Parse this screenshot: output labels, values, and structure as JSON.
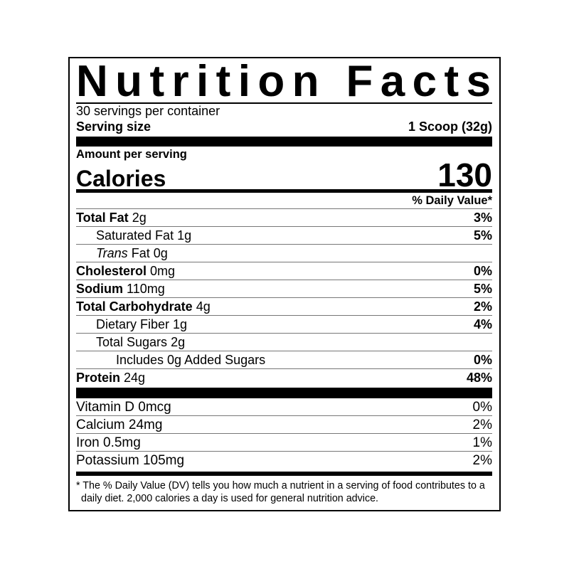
{
  "title": "Nutrition Facts",
  "servings_per_container": "30 servings per container",
  "serving_size": {
    "label": "Serving size",
    "value": "1 Scoop (32g)"
  },
  "amount_per_serving": "Amount per serving",
  "calories": {
    "label": "Calories",
    "value": "130"
  },
  "daily_value_header": "% Daily Value*",
  "nutrients": [
    {
      "name": "Total Fat",
      "amount": "2g",
      "dv": "3%"
    },
    {
      "name": "Saturated Fat",
      "amount": "1g",
      "dv": "5%"
    },
    {
      "name_italic": "Trans",
      "name": "Fat",
      "amount": "0g",
      "dv": ""
    },
    {
      "name": "Cholesterol",
      "amount": "0mg",
      "dv": "0%"
    },
    {
      "name": "Sodium",
      "amount": "110mg",
      "dv": "5%"
    },
    {
      "name": "Total Carbohydrate",
      "amount": "4g",
      "dv": "2%"
    },
    {
      "name": "Dietary Fiber",
      "amount": "1g",
      "dv": "4%"
    },
    {
      "name": "Total Sugars",
      "amount": "2g",
      "dv": ""
    },
    {
      "name": "Includes 0g Added Sugars",
      "amount": "",
      "dv": "0%"
    },
    {
      "name": "Protein",
      "amount": "24g",
      "dv": "48%"
    }
  ],
  "vitamins": [
    {
      "text": "Vitamin D 0mcg",
      "dv": "0%"
    },
    {
      "text": "Calcium 24mg",
      "dv": "2%"
    },
    {
      "text": "Iron 0.5mg",
      "dv": "1%"
    },
    {
      "text": "Potassium 105mg",
      "dv": "2%"
    }
  ],
  "footnote": "* The % Daily Value (DV) tells you how much a nutrient in a serving of food contributes to a daily diet. 2,000 calories a day is used for general nutrition advice."
}
